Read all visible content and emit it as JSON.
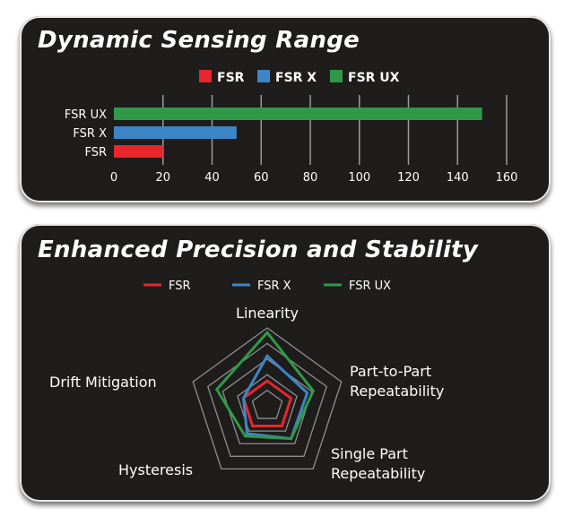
{
  "panels": {
    "top_title": "Dynamic Sensing Range",
    "bottom_title": "Enhanced Precision and Stability"
  },
  "chart_data": [
    {
      "type": "bar",
      "orientation": "horizontal",
      "title": "Dynamic Sensing Range",
      "categories": [
        "FSR UX",
        "FSR X",
        "FSR"
      ],
      "values": [
        150,
        50,
        20
      ],
      "colors": [
        "#2e9a47",
        "#3d86c6",
        "#e8262b"
      ],
      "legend": [
        "FSR",
        "FSR X",
        "FSR UX"
      ],
      "legend_colors": [
        "#e8262b",
        "#3d86c6",
        "#2e9a47"
      ],
      "legend_placement": "top",
      "xticks": [
        "0",
        "20",
        "40",
        "60",
        "80",
        "100",
        "120",
        "140",
        "160"
      ],
      "xlim": [
        0,
        160
      ],
      "grid": true
    },
    {
      "type": "radar",
      "title": "Enhanced Precision and Stability",
      "axes": [
        "Linearity",
        "Part-to-Part Repeatability",
        "Single Part Repeatability",
        "Hysteresis",
        "Drift Mitigation"
      ],
      "axis_label_lines": [
        [
          "Linearity"
        ],
        [
          "Part-to-Part",
          "Repeatability"
        ],
        [
          "Single Part",
          "Repeatability"
        ],
        [
          "Hysteresis"
        ],
        [
          "Drift Mitigation"
        ]
      ],
      "rmax": 5,
      "rings": 5,
      "series": [
        {
          "name": "FSR",
          "color": "#e8262b",
          "values": [
            1.6,
            1.6,
            1.6,
            1.6,
            1.6
          ]
        },
        {
          "name": "FSR X",
          "color": "#3d86c6",
          "values": [
            3.2,
            2.7,
            2.6,
            2.2,
            1.6
          ]
        },
        {
          "name": "FSR UX",
          "color": "#2e9a47",
          "values": [
            4.7,
            3.1,
            2.6,
            2.4,
            3.4
          ]
        }
      ],
      "legend_placement": "top"
    }
  ]
}
